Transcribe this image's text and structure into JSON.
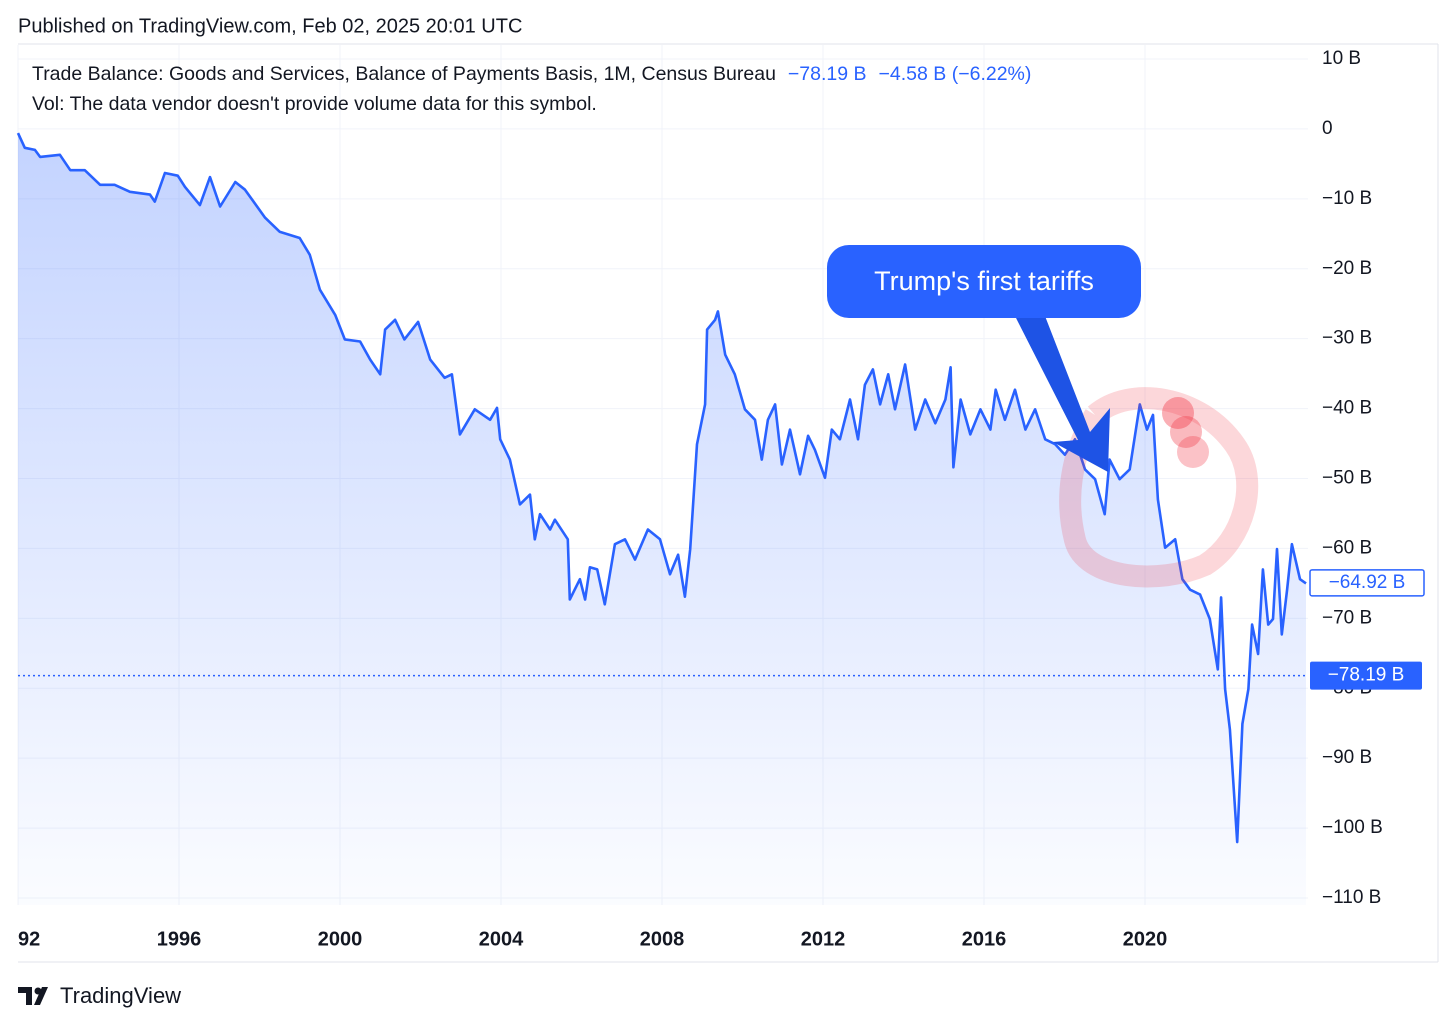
{
  "header": {
    "published": "Published on TradingView.com, Feb 02, 2025 20:01 UTC",
    "change": "−4.58 B (−6.22%)",
    "volume_note": "Vol: The data vendor doesn't provide volume data for this symbol.",
    "brand": "TradingView"
  },
  "chart_data": {
    "type": "line",
    "annotation": "Trump's first tariffs",
    "xlim": [
      1992,
      2024.05
    ],
    "ylim": [
      -111,
      12
    ],
    "xticks": [
      {
        "value": 1992,
        "label": "92"
      },
      1996,
      2000,
      2004,
      2008,
      2012,
      2016,
      2020
    ],
    "yticks": [
      {
        "value": 10,
        "label": "10 B"
      },
      0,
      {
        "value": -10,
        "label": "−10 B"
      },
      {
        "value": -20,
        "label": "−20 B"
      },
      {
        "value": -30,
        "label": "−30 B"
      },
      {
        "value": -40,
        "label": "−40 B"
      },
      {
        "value": -50,
        "label": "−50 B"
      },
      {
        "value": -60,
        "label": "−60 B"
      },
      {
        "value": -70,
        "label": "−70 B"
      },
      {
        "value": -80,
        "label": "−80 B"
      },
      {
        "value": -90,
        "label": "−90 B"
      },
      {
        "value": -100,
        "label": "−100 B"
      },
      {
        "value": -110,
        "label": "−110 B"
      }
    ],
    "grid": true,
    "last_price": {
      "value": -78.19,
      "label": "−78.19 B"
    },
    "cursor_price": {
      "value": -64.92,
      "label": "−64.92 B"
    },
    "x": [
      1992.0,
      1992.17,
      1992.42,
      1992.55,
      1993.04,
      1993.3,
      1993.66,
      1994.04,
      1994.4,
      1994.78,
      1995.28,
      1995.4,
      1995.65,
      1995.97,
      1996.15,
      1996.52,
      1996.77,
      1997.02,
      1997.4,
      1997.64,
      1998.14,
      1998.5,
      1999.0,
      1999.25,
      1999.5,
      1999.88,
      2000.12,
      2000.5,
      2000.75,
      2001.0,
      2001.12,
      2001.37,
      2001.6,
      2001.94,
      2002.24,
      2002.6,
      2002.78,
      2002.98,
      2003.35,
      2003.73,
      2003.9,
      2003.98,
      2004.22,
      2004.47,
      2004.72,
      2004.84,
      2004.97,
      2005.22,
      2005.34,
      2005.66,
      2005.71,
      2005.96,
      2006.09,
      2006.21,
      2006.39,
      2006.58,
      2006.83,
      2007.08,
      2007.33,
      2007.65,
      2007.95,
      2008.2,
      2008.4,
      2008.57,
      2008.7,
      2008.87,
      2009.07,
      2009.12,
      2009.32,
      2009.39,
      2009.57,
      2009.81,
      2010.06,
      2010.31,
      2010.48,
      2010.63,
      2010.81,
      2010.98,
      2011.18,
      2011.43,
      2011.63,
      2011.8,
      2012.05,
      2012.22,
      2012.42,
      2012.67,
      2012.87,
      2013.04,
      2013.24,
      2013.42,
      2013.62,
      2013.79,
      2014.04,
      2014.29,
      2014.54,
      2014.79,
      2015.04,
      2015.17,
      2015.24,
      2015.42,
      2015.66,
      2015.91,
      2016.16,
      2016.29,
      2016.52,
      2016.77,
      2017.03,
      2017.27,
      2017.52,
      2017.77,
      2018.01,
      2018.26,
      2018.51,
      2018.76,
      2019.0,
      2019.12,
      2019.37,
      2019.62,
      2019.87,
      2020.05,
      2020.2,
      2020.32,
      2020.5,
      2020.75,
      2020.93,
      2021.12,
      2021.37,
      2021.61,
      2021.81,
      2021.89,
      2021.99,
      2022.11,
      2022.29,
      2022.42,
      2022.57,
      2022.66,
      2022.81,
      2022.93,
      2023.06,
      2023.18,
      2023.28,
      2023.4,
      2023.53,
      2023.65,
      2023.85,
      2024.0
    ],
    "series": [
      {
        "name": "Trade Balance: Goods and Services, Balance of Payments Basis, 1M, Census Bureau",
        "color": "#2962ff",
        "values": [
          -0.6,
          -2.7,
          -3,
          -4,
          -3.7,
          -5.9,
          -5.9,
          -8,
          -8,
          -9,
          -9.4,
          -10.4,
          -6.3,
          -6.7,
          -8.3,
          -10.9,
          -6.9,
          -11.1,
          -7.6,
          -8.7,
          -12.7,
          -14.7,
          -15.6,
          -18,
          -23,
          -26.6,
          -30.1,
          -30.4,
          -33,
          -35.1,
          -28.7,
          -27.3,
          -30.1,
          -27.6,
          -33,
          -35.6,
          -35.1,
          -43.7,
          -40.1,
          -41.6,
          -39.9,
          -44.4,
          -47.3,
          -53.7,
          -52.3,
          -58.7,
          -55.1,
          -57.3,
          -55.9,
          -58.7,
          -67.3,
          -64.4,
          -67.3,
          -62.7,
          -63,
          -68,
          -59.4,
          -58.7,
          -61.6,
          -57.3,
          -58.7,
          -63.7,
          -60.9,
          -66.9,
          -60.1,
          -45.1,
          -39.4,
          -28.7,
          -27.3,
          -26.1,
          -32.3,
          -35.1,
          -40.1,
          -41.6,
          -47.3,
          -41.6,
          -39.4,
          -48,
          -43,
          -49.4,
          -43.9,
          -45.9,
          -49.9,
          -43,
          -44.4,
          -38.7,
          -44.4,
          -36.6,
          -34.4,
          -39.4,
          -35.1,
          -40.1,
          -33.7,
          -43,
          -38.7,
          -42.1,
          -38.7,
          -34.1,
          -48.4,
          -38.7,
          -43.7,
          -40.1,
          -43,
          -37.3,
          -41.6,
          -37.3,
          -43,
          -40.1,
          -44.4,
          -45.1,
          -46.6,
          -44.4,
          -48.7,
          -50.1,
          -55.1,
          -47.3,
          -50.1,
          -48.7,
          -39.4,
          -43,
          -40.9,
          -53,
          -59.9,
          -58.7,
          -64.4,
          -65.9,
          -66.6,
          -70.1,
          -77.3,
          -67,
          -80.1,
          -85.9,
          -102,
          -85.1,
          -80.1,
          -70.9,
          -75.1,
          -63,
          -70.9,
          -70.1,
          -60.1,
          -72.3,
          -65.9,
          -59.4,
          -64.4,
          -65
        ]
      }
    ]
  }
}
